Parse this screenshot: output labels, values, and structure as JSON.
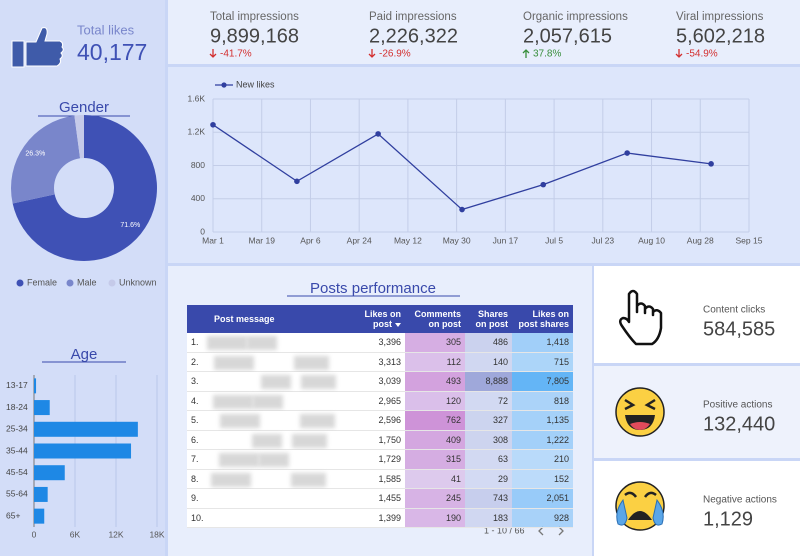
{
  "kpis": {
    "total_likes": {
      "label": "Total likes",
      "value": "40,177"
    },
    "impressions": [
      {
        "label": "Total impressions",
        "value": "9,899,168",
        "change": "-41.7%"
      },
      {
        "label": "Paid impressions",
        "value": "2,226,322",
        "change": "-26.9%"
      },
      {
        "label": "Organic impressions",
        "value": "2,057,615",
        "change": "37.8%"
      },
      {
        "label": "Viral impressions",
        "value": "5,602,218",
        "change": "-54.9%"
      }
    ]
  },
  "actions": [
    {
      "label": "Content clicks",
      "value": "584,585"
    },
    {
      "label": "Positive actions",
      "value": "132,440"
    },
    {
      "label": "Negative actions",
      "value": "1,129"
    }
  ],
  "chart_data": [
    {
      "type": "pie",
      "title": "Gender",
      "categories": [
        "Female",
        "Male",
        "Unknown"
      ],
      "values": [
        71.6,
        26.3,
        2.1
      ],
      "value_labels": [
        "71.6%",
        "26.3%",
        null
      ],
      "colors": [
        "#3f51b5",
        "#7986cb",
        "#c5cae9"
      ]
    },
    {
      "type": "line",
      "x": [
        "Mar 1",
        "Apr 1",
        "May 1",
        "Jun 1",
        "Jul 1",
        "Aug 1",
        "Sep 1"
      ],
      "series": [
        {
          "name": "New likes",
          "color": "#303f9f",
          "values": [
            1290,
            610,
            1180,
            270,
            570,
            950,
            820
          ]
        }
      ],
      "xlim": [
        "Mar 1",
        "Sep 15"
      ],
      "xticks": [
        "Mar 1",
        "Mar 19",
        "Apr 6",
        "Apr 24",
        "May 12",
        "May 30",
        "Jun 17",
        "Jul 5",
        "Jul 23",
        "Aug 10",
        "Aug 28",
        "Sep 15"
      ],
      "ylim": [
        0,
        1600
      ],
      "yticks": [
        0,
        400,
        800,
        {
          "value": 1200,
          "label": "1.2K"
        },
        {
          "value": 1600,
          "label": "1.6K"
        }
      ],
      "grid": true
    },
    {
      "type": "bar",
      "orientation": "horizontal",
      "title": "Age",
      "categories": [
        "13-17",
        "18-24",
        "25-34",
        "35-44",
        "45-54",
        "55-64",
        "65+"
      ],
      "values": [
        300,
        2300,
        15200,
        14200,
        4500,
        2000,
        1500
      ],
      "color": "#1e88e5",
      "xlim": [
        0,
        18000
      ],
      "xticks": [
        0,
        {
          "value": 6000,
          "label": "6K"
        },
        {
          "value": 12000,
          "label": "12K"
        },
        {
          "value": 18000,
          "label": "18K"
        }
      ],
      "grid": true
    }
  ],
  "table": {
    "title": "Posts performance",
    "columns": [
      "Post message",
      "Likes on post",
      "Comments on post",
      "Shares on post",
      "Likes on post shares"
    ],
    "rows": [
      [
        "1.",
        "3,396",
        "305",
        "486",
        "1,418"
      ],
      [
        "2.",
        "3,313",
        "112",
        "140",
        "715"
      ],
      [
        "3.",
        "3,039",
        "493",
        "8,888",
        "7,805"
      ],
      [
        "4.",
        "2,965",
        "120",
        "72",
        "818"
      ],
      [
        "5.",
        "2,596",
        "762",
        "327",
        "1,135"
      ],
      [
        "6.",
        "1,750",
        "409",
        "308",
        "1,222"
      ],
      [
        "7.",
        "1,729",
        "315",
        "63",
        "210"
      ],
      [
        "8.",
        "1,585",
        "41",
        "29",
        "152"
      ],
      [
        "9.",
        "1,455",
        "245",
        "743",
        "2,051"
      ],
      [
        "10.",
        "1,399",
        "190",
        "183",
        "928"
      ]
    ],
    "pagination": "1 - 10 / 66"
  }
}
